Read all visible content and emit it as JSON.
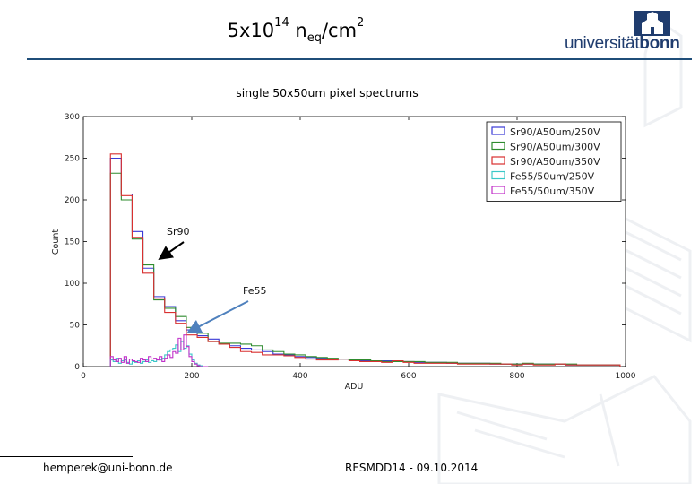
{
  "slide": {
    "title_base": "5x10",
    "title_exp": "14",
    "title_n": " n",
    "title_sub": "eq",
    "title_unit": "/cm",
    "title_unit_exp": "2",
    "footer_left": "hemperek@uni-bonn.de",
    "footer_right": "RESMDD14 - 09.10.2014",
    "logo_prefix": "universität",
    "logo_suffix": "bonn"
  },
  "colors": {
    "rule": "#1f4e79",
    "sr250": "#3a3ad6",
    "sr300": "#2e8b2e",
    "sr350": "#d93030",
    "fe250": "#3cc8c8",
    "fe350": "#c030c8",
    "arrow_sr": "#000000",
    "arrow_fe": "#4f81bd"
  },
  "chart_data": {
    "type": "histogram",
    "title": "single 50x50um pixel spectrums",
    "xlabel": "ADU",
    "ylabel": "Count",
    "xlim": [
      0,
      1000
    ],
    "ylim": [
      0,
      300
    ],
    "xticks": [
      "0",
      "200",
      "400",
      "600",
      "800",
      "1000"
    ],
    "yticks": [
      "0",
      "50",
      "100",
      "150",
      "200",
      "250",
      "300"
    ],
    "legend_position": "top-right",
    "bin_edges": [
      50,
      70,
      90,
      110,
      130,
      150,
      170,
      190,
      210,
      230,
      250,
      270,
      290,
      310,
      330,
      350,
      370,
      390,
      410,
      430,
      450,
      470,
      490,
      510,
      530,
      550,
      570,
      590,
      610,
      630,
      650,
      670,
      690,
      710,
      730,
      750,
      770,
      790,
      810,
      830,
      850,
      870,
      890,
      910,
      930,
      950,
      970,
      990
    ],
    "series": [
      {
        "name": "Sr90/A50um/250V",
        "color_key": "sr250",
        "values": [
          250,
          207,
          162,
          118,
          84,
          72,
          55,
          44,
          37,
          33,
          27,
          25,
          22,
          20,
          18,
          15,
          14,
          12,
          11,
          10,
          9,
          9,
          8,
          7,
          7,
          7,
          6,
          6,
          5,
          5,
          5,
          4,
          4,
          4,
          4,
          3,
          3,
          3,
          3,
          3,
          3,
          3,
          2,
          2,
          2,
          2,
          2
        ]
      },
      {
        "name": "Sr90/A50um/300V",
        "color_key": "sr300",
        "values": [
          232,
          200,
          153,
          122,
          80,
          70,
          60,
          47,
          40,
          30,
          28,
          28,
          27,
          25,
          20,
          18,
          15,
          14,
          12,
          11,
          10,
          9,
          8,
          8,
          7,
          6,
          6,
          6,
          6,
          5,
          5,
          5,
          4,
          4,
          4,
          4,
          3,
          3,
          4,
          3,
          3,
          3,
          3,
          2,
          2,
          2,
          2
        ]
      },
      {
        "name": "Sr90/A50um/350V",
        "color_key": "sr350",
        "values": [
          255,
          205,
          155,
          112,
          82,
          65,
          52,
          38,
          35,
          30,
          27,
          23,
          18,
          17,
          14,
          14,
          13,
          11,
          9,
          8,
          8,
          9,
          7,
          6,
          6,
          5,
          7,
          5,
          4,
          4,
          4,
          4,
          3,
          3,
          3,
          3,
          3,
          2,
          3,
          2,
          2,
          3,
          2,
          2,
          2,
          2,
          2
        ]
      }
    ],
    "fe_bin_edges": [
      50,
      55,
      60,
      65,
      70,
      75,
      80,
      85,
      90,
      95,
      100,
      105,
      110,
      115,
      120,
      125,
      130,
      135,
      140,
      145,
      150,
      155,
      160,
      165,
      170,
      175,
      180,
      185,
      190,
      195,
      200,
      205,
      210,
      215,
      220,
      225,
      230
    ],
    "fe_series": [
      {
        "name": "Fe55/50um/250V",
        "color_key": "fe250",
        "values": [
          8,
          6,
          10,
          4,
          7,
          8,
          5,
          3,
          6,
          5,
          7,
          4,
          6,
          8,
          5,
          7,
          6,
          9,
          8,
          10,
          14,
          18,
          20,
          22,
          26,
          18,
          30,
          22,
          25,
          15,
          8,
          4,
          2,
          1,
          0,
          0
        ]
      },
      {
        "name": "Fe55/50um/350V",
        "color_key": "fe350",
        "values": [
          12,
          8,
          6,
          10,
          5,
          12,
          4,
          9,
          7,
          6,
          5,
          10,
          8,
          6,
          12,
          9,
          10,
          8,
          12,
          6,
          10,
          14,
          11,
          18,
          16,
          34,
          20,
          38,
          24,
          12,
          6,
          3,
          1,
          0,
          0,
          0
        ]
      }
    ],
    "annotations": [
      {
        "text": "Sr90",
        "at_x": 135,
        "at_y": 125
      },
      {
        "text": "Fe55",
        "at_x": 190,
        "at_y": 38
      }
    ]
  }
}
